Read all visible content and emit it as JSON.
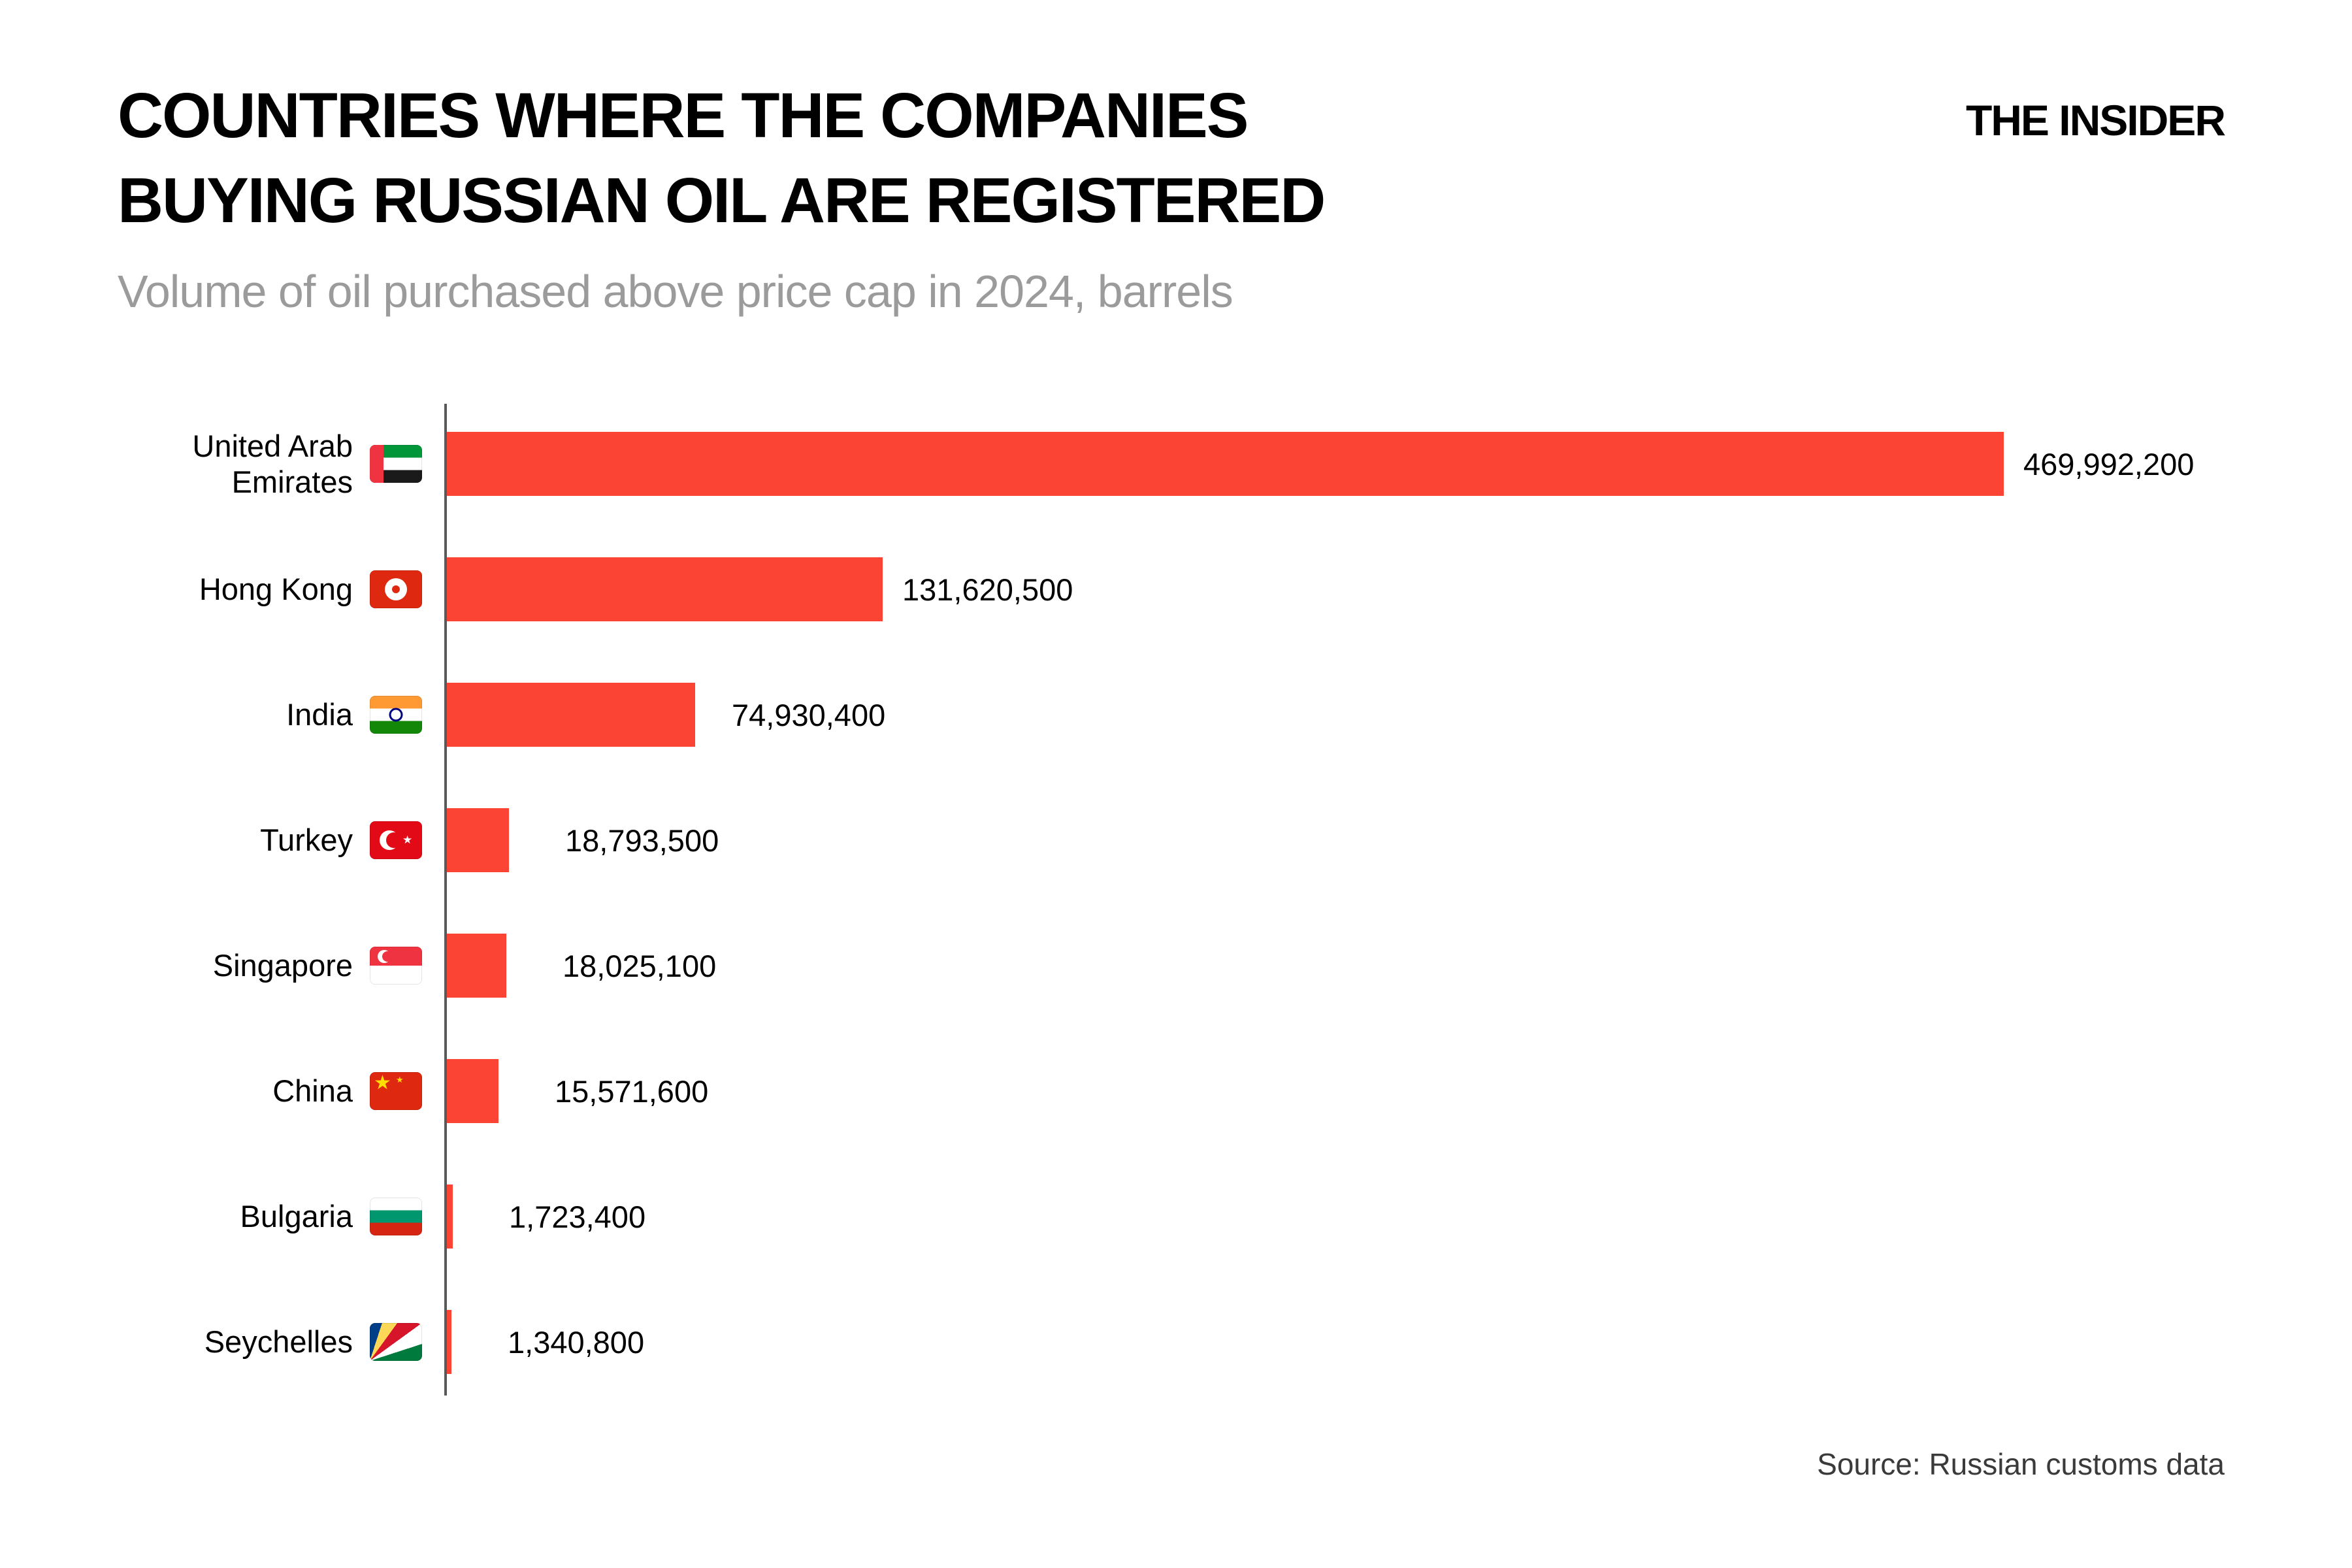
{
  "header": {
    "title_line1": "COUNTRIES WHERE THE COMPANIES",
    "title_line2": "BUYING RUSSIAN OIL ARE REGISTERED",
    "subtitle": "Volume of oil purchased above price cap in 2024, barrels",
    "logo": "THE INSIDER"
  },
  "footer": {
    "source": "Source: Russian customs data"
  },
  "colors": {
    "bar": "#FB4434",
    "axis": "#595959",
    "subtitle_text": "#9B9B9B",
    "source_text": "#3A3A3A",
    "title_text": "#000000"
  },
  "chart_data": {
    "type": "bar",
    "orientation": "horizontal",
    "title": "COUNTRIES WHERE THE COMPANIES BUYING RUSSIAN OIL ARE REGISTERED",
    "subtitle": "Volume of oil purchased above price cap in 2024, barrels",
    "source": "Source: Russian customs data",
    "unit": "barrels",
    "grid": false,
    "legend": false,
    "xlim": [
      0,
      469992200
    ],
    "categories": [
      "United Arab Emirates",
      "Hong Kong",
      "India",
      "Turkey",
      "Singapore",
      "China",
      "Bulgaria",
      "Seychelles"
    ],
    "values": [
      469992200,
      131620500,
      74930400,
      18793500,
      18025100,
      15571600,
      1723400,
      1340800
    ],
    "value_labels": [
      "469,992,200",
      "131,620,500",
      "74,930,400",
      "18,793,500",
      "18,025,100",
      "15,571,600",
      "1,723,400",
      "1,340,800"
    ],
    "flags": [
      "ae",
      "hk",
      "in",
      "tr",
      "sg",
      "cn",
      "bg",
      "sc"
    ],
    "flag_emojis": [
      "🇦🇪",
      "🇭🇰",
      "🇮🇳",
      "🇹🇷",
      "🇸🇬",
      "🇨🇳",
      "🇧🇬",
      "🇸🇨"
    ],
    "bar_color": "#FB4434"
  }
}
